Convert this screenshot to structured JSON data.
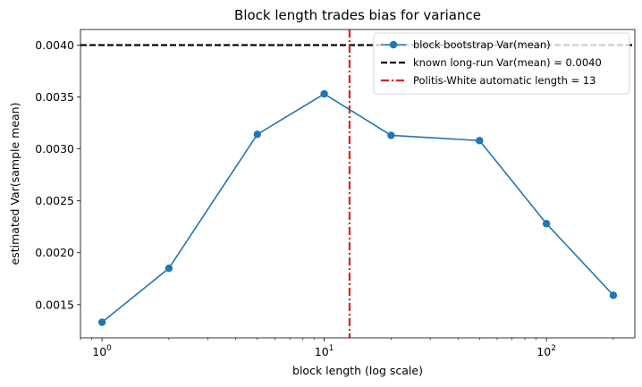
{
  "chart_data": {
    "type": "line",
    "title": "Block length trades bias for variance",
    "xlabel": "block length (log scale)",
    "ylabel": "estimated Var(sample mean)",
    "xscale": "log",
    "xlim": [
      0.8,
      250
    ],
    "ylim": [
      0.00118,
      0.00415
    ],
    "x_ticks": [
      {
        "value": 1,
        "base": "10",
        "exp": "0"
      },
      {
        "value": 10,
        "base": "10",
        "exp": "1"
      },
      {
        "value": 100,
        "base": "10",
        "exp": "2"
      }
    ],
    "y_ticks": [
      {
        "value": 0.0015,
        "label": "0.0015"
      },
      {
        "value": 0.002,
        "label": "0.0020"
      },
      {
        "value": 0.0025,
        "label": "0.0025"
      },
      {
        "value": 0.003,
        "label": "0.0030"
      },
      {
        "value": 0.0035,
        "label": "0.0035"
      },
      {
        "value": 0.004,
        "label": "0.0040"
      }
    ],
    "series": [
      {
        "name": "block bootstrap Var(mean)",
        "color": "#1f77b4",
        "style": "line-with-circle-markers",
        "x": [
          1,
          2,
          5,
          10,
          20,
          50,
          100,
          200
        ],
        "y": [
          0.00133,
          0.00185,
          0.00314,
          0.00353,
          0.00313,
          0.00308,
          0.00228,
          0.00159
        ]
      }
    ],
    "reference_lines": [
      {
        "name": "known long-run Var(mean) = 0.0040",
        "orientation": "horizontal",
        "value": 0.004,
        "color": "#000000",
        "style": "dashed"
      },
      {
        "name": "Politis-White automatic length = 13",
        "orientation": "vertical",
        "value": 13,
        "color": "#d62728",
        "style": "dash-dot"
      }
    ],
    "legend_position": "top-right",
    "grid": false
  }
}
